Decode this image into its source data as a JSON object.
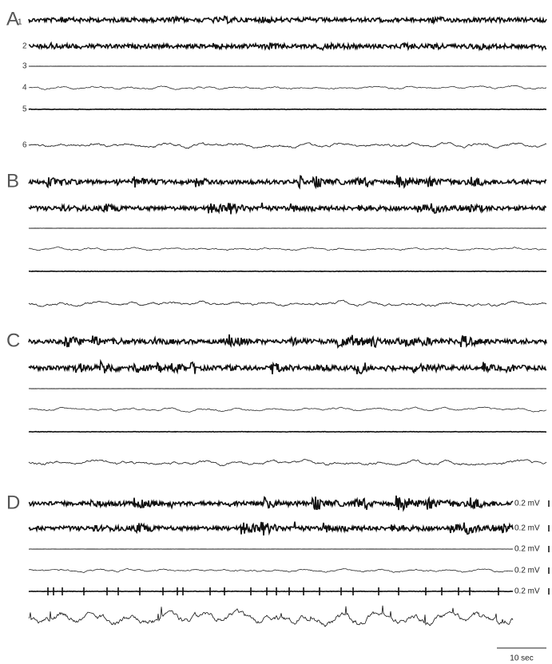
{
  "panels": [
    {
      "label": "A",
      "channels": [
        "1",
        "2",
        "3",
        "4",
        "5",
        "6"
      ]
    },
    {
      "label": "B"
    },
    {
      "label": "C"
    },
    {
      "label": "D",
      "scale_labels": [
        "0.2 mV",
        "0.2 mV",
        "0.2 mV",
        "0.2 mV",
        "0.2 mV"
      ]
    }
  ],
  "time_scale": "10 sec"
}
